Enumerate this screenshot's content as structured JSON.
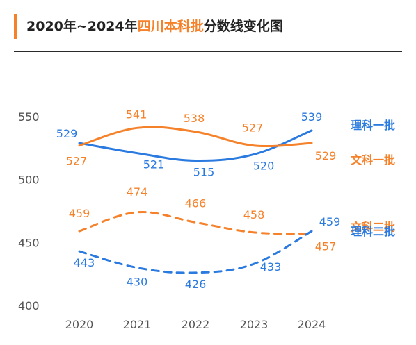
{
  "header": {
    "title_prefix": "2020年~2024年",
    "title_highlight": "四川本科批",
    "title_suffix": "分数线变化图"
  },
  "colors": {
    "blue": "#2a7ae0",
    "orange": "#f5822a",
    "axis_text": "#555555"
  },
  "chart_data": {
    "type": "line",
    "title": "2020年~2024年四川本科批分数线变化图",
    "x": [
      "2020",
      "2021",
      "2022",
      "2023",
      "2024"
    ],
    "ylim": [
      400,
      560
    ],
    "yticks": [
      "550",
      "500",
      "450",
      "400"
    ],
    "grid": false,
    "legend": "end-of-line labels at right",
    "series": [
      {
        "name": "理科一批",
        "values": [
          529,
          521,
          515,
          520,
          539
        ],
        "color": "#2a7ae0",
        "style": "solid",
        "labels": [
          "529",
          "521",
          "515",
          "520",
          "539"
        ]
      },
      {
        "name": "文科一批",
        "values": [
          527,
          541,
          538,
          527,
          529
        ],
        "color": "#f5822a",
        "style": "solid",
        "labels": [
          "527",
          "541",
          "538",
          "527",
          "529"
        ]
      },
      {
        "name": "文科二批",
        "values": [
          459,
          474,
          466,
          458,
          457
        ],
        "color": "#f5822a",
        "style": "dashed",
        "labels": [
          "459",
          "474",
          "466",
          "458",
          "457"
        ]
      },
      {
        "name": "理科二批",
        "values": [
          443,
          430,
          426,
          433,
          459
        ],
        "color": "#2a7ae0",
        "style": "dashed",
        "labels": [
          "443",
          "430",
          "426",
          "433",
          "459"
        ]
      }
    ]
  }
}
